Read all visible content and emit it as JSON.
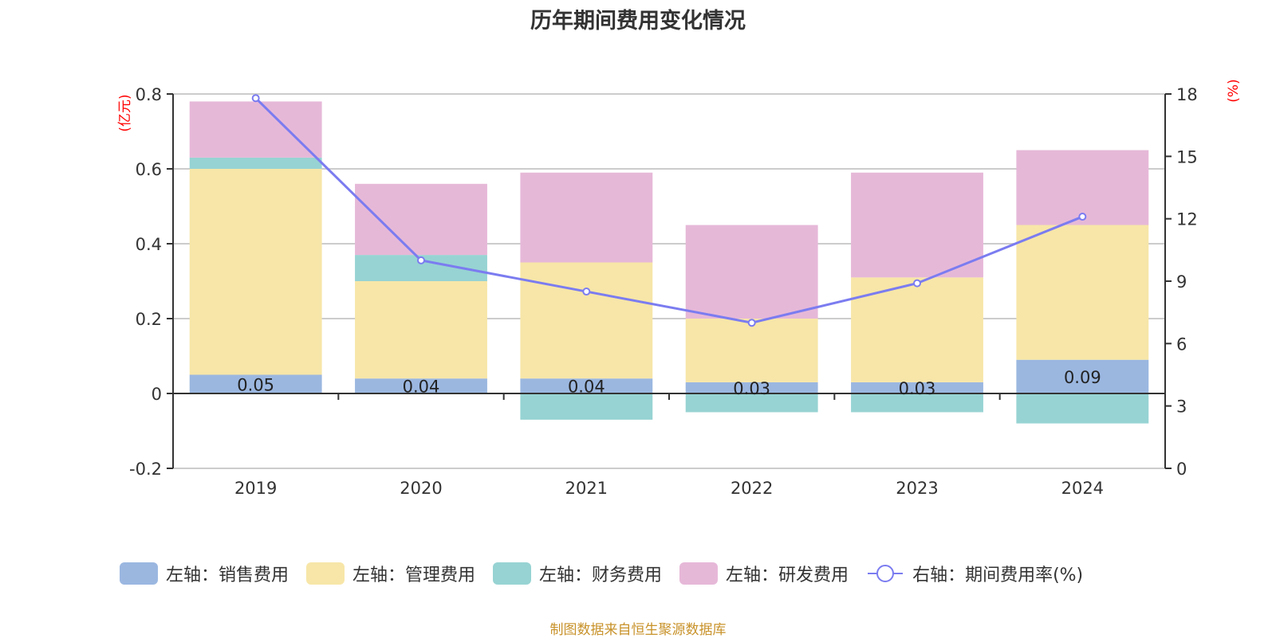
{
  "title": "历年期间费用变化情况",
  "source": "制图数据来自恒生聚源数据库",
  "colors": {
    "sales": "#9bb7e0",
    "admin": "#f7e6a8",
    "finance": "#97d3d3",
    "rd": "#e6b8d8",
    "rate": "#7b7cf0",
    "unit_label": "#ff0000"
  },
  "chart_data": {
    "type": "bar",
    "stacked": true,
    "title": "历年期间费用变化情况",
    "categories": [
      "2019",
      "2020",
      "2021",
      "2022",
      "2023",
      "2024"
    ],
    "left_axis": {
      "label": "(亿元)",
      "range": [
        -0.2,
        0.8
      ],
      "ticks": [
        "0.8",
        "0.6",
        "0.4",
        "0.2",
        "0",
        "-0.2"
      ],
      "tick_values": [
        0.8,
        0.6,
        0.4,
        0.2,
        0,
        -0.2
      ]
    },
    "right_axis": {
      "label": "(%)",
      "range": [
        0,
        18
      ],
      "ticks": [
        "18",
        "15",
        "12",
        "9",
        "6",
        "3",
        "0"
      ],
      "tick_values": [
        18,
        15,
        12,
        9,
        6,
        3,
        0
      ]
    },
    "grid": true,
    "legend_position": "bottom",
    "series": [
      {
        "key": "sales",
        "name": "左轴：销售费用",
        "type": "bar",
        "axis": "left",
        "values": [
          0.05,
          0.04,
          0.04,
          0.03,
          0.03,
          0.09
        ],
        "labels": [
          "0.05",
          "0.04",
          "0.04",
          "0.03",
          "0.03",
          "0.09"
        ]
      },
      {
        "key": "admin",
        "name": "左轴：管理费用",
        "type": "bar",
        "axis": "left",
        "values": [
          0.55,
          0.26,
          0.31,
          0.17,
          0.28,
          0.36
        ]
      },
      {
        "key": "finance",
        "name": "左轴：财务费用",
        "type": "bar",
        "axis": "left",
        "values": [
          0.03,
          0.07,
          -0.07,
          -0.05,
          -0.05,
          -0.08
        ]
      },
      {
        "key": "rd",
        "name": "左轴：研发费用",
        "type": "bar",
        "axis": "left",
        "values": [
          0.15,
          0.19,
          0.24,
          0.25,
          0.28,
          0.2
        ]
      },
      {
        "key": "rate",
        "name": "右轴：期间费用率(%)",
        "type": "line",
        "axis": "right",
        "values": [
          17.8,
          10.0,
          8.5,
          7.0,
          8.9,
          12.1
        ]
      }
    ]
  }
}
